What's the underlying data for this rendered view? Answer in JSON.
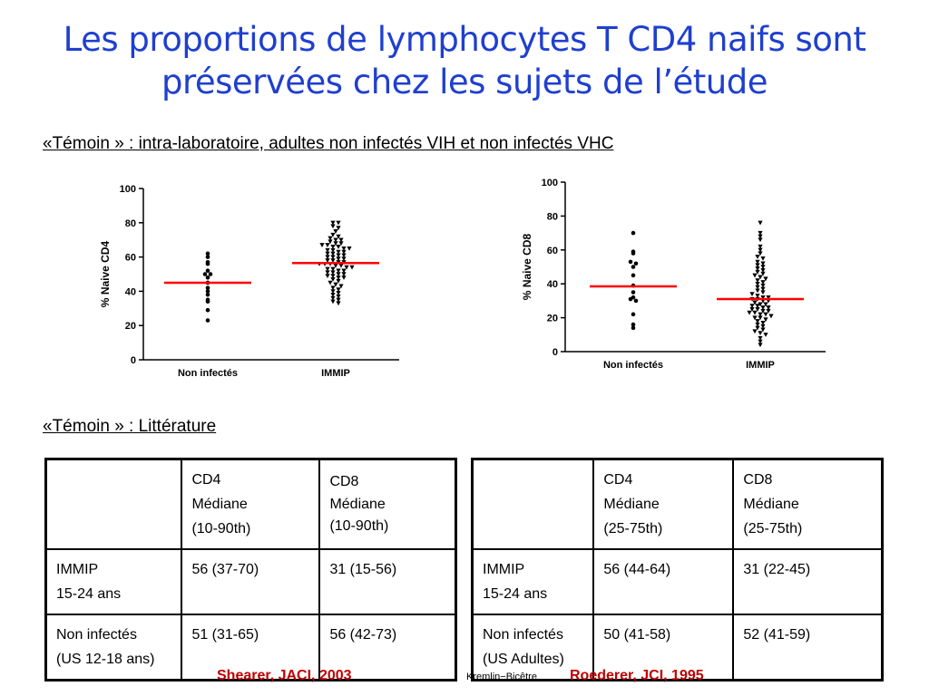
{
  "slide": {
    "title_line1": "Les proportions de lymphocytes T CD4 naifs sont",
    "title_line2": "préservées chez les sujets de l’étude",
    "subtitle_charts": "«Témoin » : intra-laboratoire, adultes non infectés VIH et non infectés VHC",
    "subtitle_tables": "«Témoin » : Littérature",
    "citation_left": "Shearer, JACI, 2003",
    "citation_right": "Roederer, JCI, 1995",
    "center_note": "Kremlin−Bicêtre"
  },
  "chart_data": [
    {
      "type": "scatter",
      "ylabel": "% Naive CD4",
      "ylim": [
        0,
        100
      ],
      "yticks": [
        0,
        20,
        40,
        60,
        80,
        100
      ],
      "categories": [
        "Non infectés",
        "IMMIP"
      ],
      "medians": [
        45,
        56.5
      ],
      "median_color": "#ff0000",
      "series": [
        {
          "values": [
            62,
            60,
            57,
            56,
            52,
            50,
            50,
            48,
            45,
            42,
            40,
            38,
            35,
            34,
            29,
            23
          ]
        },
        {
          "values": [
            80,
            80,
            78,
            77,
            75,
            73,
            72,
            71,
            70,
            70,
            69,
            68,
            68,
            67,
            67,
            66,
            66,
            65,
            65,
            64,
            64,
            63,
            63,
            62,
            62,
            61,
            61,
            60,
            60,
            59,
            59,
            58,
            58,
            57,
            57,
            56,
            56,
            56,
            55,
            55,
            54,
            54,
            53,
            53,
            52,
            52,
            51,
            51,
            50,
            50,
            49,
            49,
            48,
            48,
            47,
            46,
            45,
            44,
            43,
            42,
            41,
            40,
            39,
            38,
            37,
            36,
            35,
            34,
            33
          ]
        }
      ]
    },
    {
      "type": "scatter",
      "ylabel": "% Naive CD8",
      "ylim": [
        0,
        100
      ],
      "yticks": [
        0,
        20,
        40,
        60,
        80,
        100
      ],
      "categories": [
        "Non infectés",
        "IMMIP"
      ],
      "medians": [
        38.5,
        31
      ],
      "median_color": "#ff0000",
      "series": [
        {
          "values": [
            70,
            59,
            58,
            53,
            52,
            50,
            45,
            39,
            35,
            32,
            31,
            30,
            22,
            16,
            14
          ]
        },
        {
          "values": [
            76,
            70,
            68,
            66,
            62,
            60,
            58,
            56,
            55,
            53,
            52,
            51,
            50,
            49,
            48,
            47,
            46,
            45,
            44,
            43,
            42,
            41,
            40,
            39,
            38,
            37,
            36,
            35,
            34,
            33,
            32,
            32,
            31,
            31,
            30,
            30,
            29,
            28,
            28,
            27,
            27,
            26,
            26,
            25,
            25,
            24,
            24,
            23,
            23,
            22,
            22,
            21,
            20,
            20,
            19,
            18,
            17,
            16,
            15,
            14,
            13,
            12,
            11,
            10,
            8,
            6,
            4
          ]
        }
      ]
    }
  ],
  "tables": [
    {
      "header": [
        [],
        [
          "CD4",
          "Médiane",
          "(10-90th)"
        ],
        [
          "CD8",
          "Médiane",
          "(10-90th)"
        ]
      ],
      "rows": [
        {
          "label": [
            "IMMIP",
            "15-24 ans"
          ],
          "cd4": "56 (37-70)",
          "cd8": "31 (15-56)"
        },
        {
          "label": [
            "Non infectés",
            "(US 12-18 ans)"
          ],
          "cd4": "51 (31-65)",
          "cd8": "56 (42-73)"
        }
      ]
    },
    {
      "header": [
        [],
        [
          "CD4",
          "Médiane",
          "(25-75th)"
        ],
        [
          "CD8",
          "Médiane",
          "(25-75th)"
        ]
      ],
      "rows": [
        {
          "label": [
            "IMMIP",
            "15-24 ans"
          ],
          "cd4": "56 (44-64)",
          "cd8": "31 (22-45)"
        },
        {
          "label": [
            "Non infectés",
            "(US Adultes)"
          ],
          "cd4": "50 (41-58)",
          "cd8": "52 (41-59)"
        }
      ]
    }
  ]
}
